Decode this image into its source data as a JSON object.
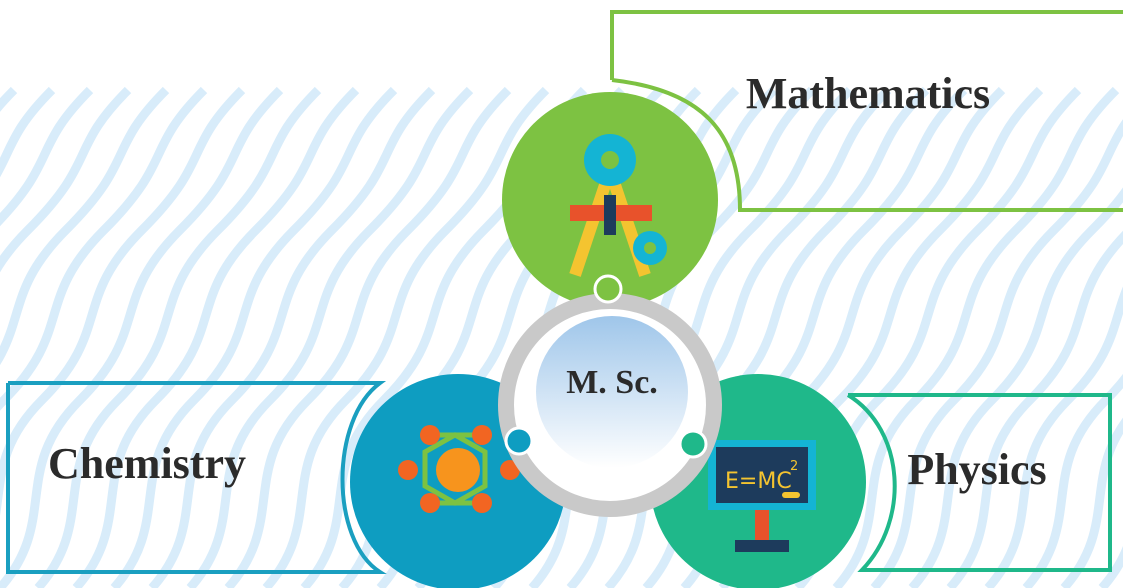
{
  "center": {
    "label": "M. Sc."
  },
  "nodes": [
    {
      "label": "Mathematics"
    },
    {
      "label": "Chemistry"
    },
    {
      "label": "Physics",
      "icon_text": "E=MC",
      "icon_superscript": "2"
    }
  ]
}
